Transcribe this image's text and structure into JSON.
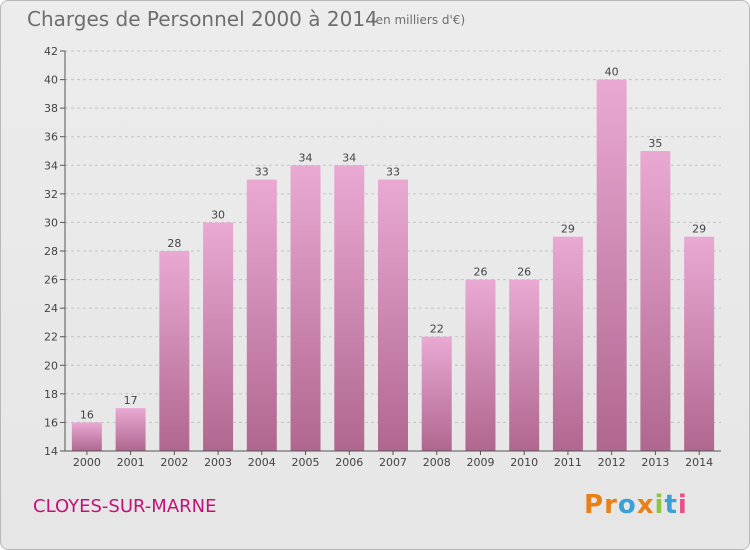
{
  "title": "Charges de Personnel 2000 à 2014",
  "subtitle": "(en milliers d'€)",
  "commune": "CLOYES-SUR-MARNE",
  "logo": {
    "letters": [
      "P",
      "r",
      "o",
      "x",
      "i",
      "t",
      "i"
    ],
    "colors": [
      "#e8801a",
      "#e8801a",
      "#3ba0d6",
      "#e8801a",
      "#8cc63e",
      "#3ba0d6",
      "#e84e8a"
    ]
  },
  "colors": {
    "bar_top": "#e9a9d3",
    "bar_bottom": "#b0678f",
    "accent": "#c2127a"
  },
  "chart_data": {
    "type": "bar",
    "categories": [
      "2000",
      "2001",
      "2002",
      "2003",
      "2004",
      "2005",
      "2006",
      "2007",
      "2008",
      "2009",
      "2010",
      "2011",
      "2012",
      "2013",
      "2014"
    ],
    "values": [
      16,
      17,
      28,
      30,
      33,
      34,
      34,
      33,
      22,
      26,
      26,
      29,
      40,
      35,
      29
    ],
    "ylim": [
      14,
      42
    ],
    "yticks": [
      14,
      16,
      18,
      20,
      22,
      24,
      26,
      28,
      30,
      32,
      34,
      36,
      38,
      40,
      42
    ],
    "grid": "horizontal-dashed"
  }
}
